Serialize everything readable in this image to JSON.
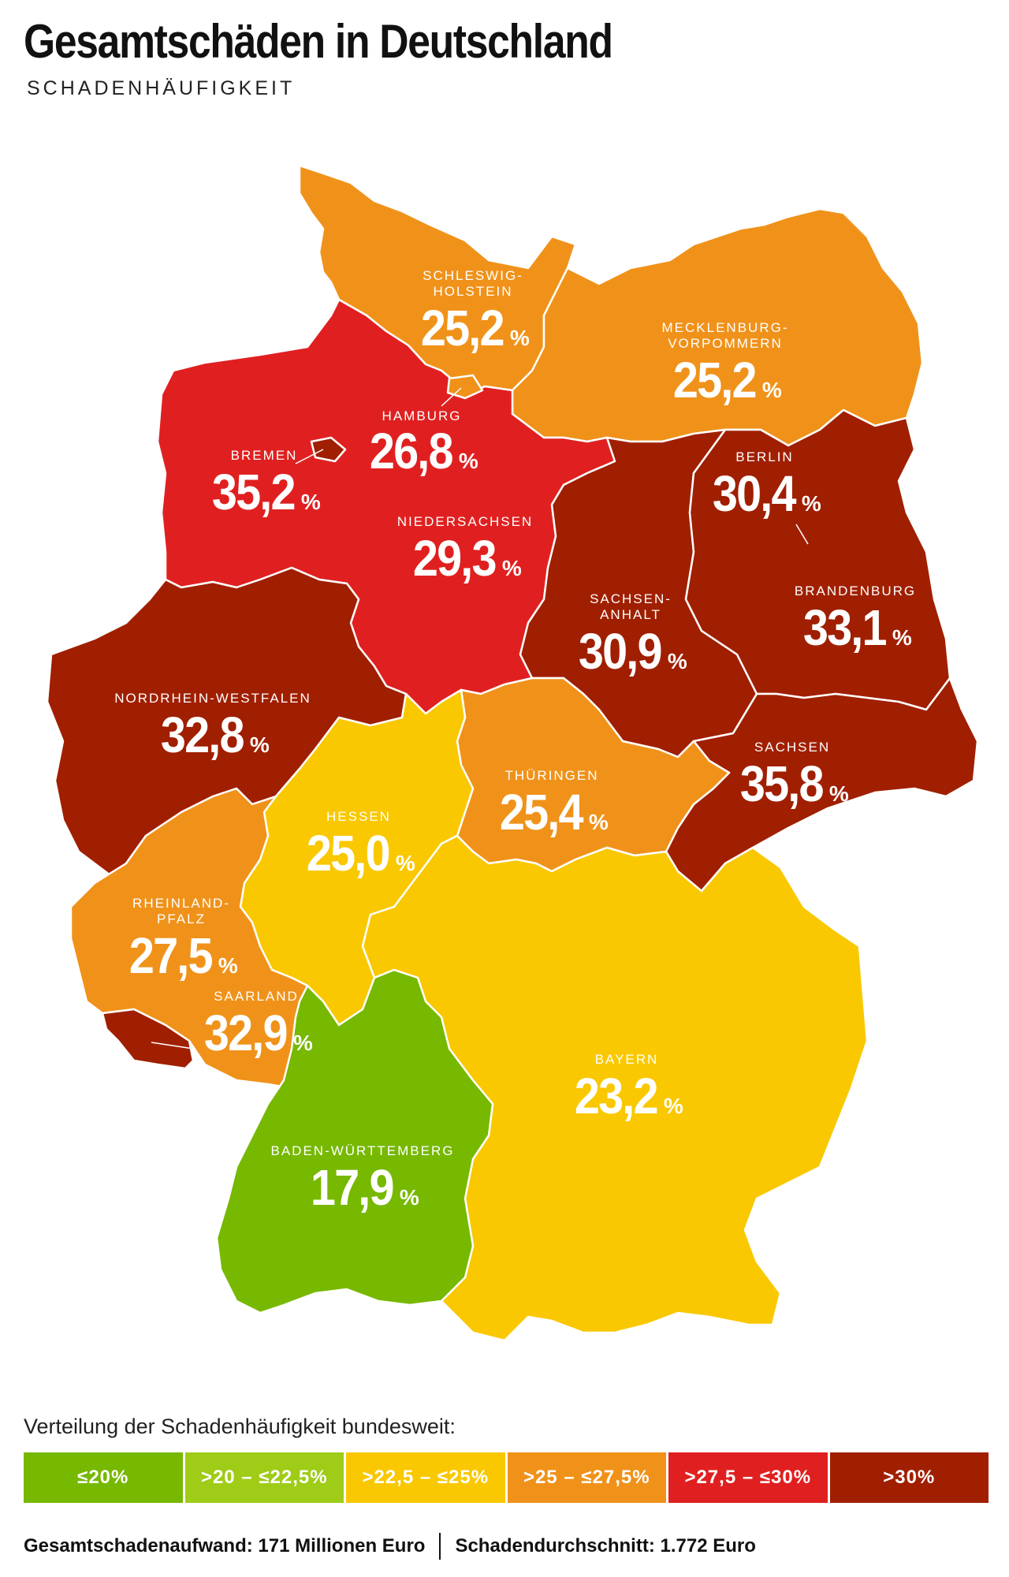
{
  "title": "Gesamtschäden in Deutschland",
  "subtitle": "SCHADENHÄUFIGKEIT",
  "colors": {
    "le20": "#77b800",
    "g20_225": "#9fcc17",
    "g225_25": "#f9c800",
    "g25_275": "#f0921a",
    "g275_30": "#e02020",
    "g30": "#a01f00"
  },
  "states": [
    {
      "name": "SCHLESWIG-\nHOLSTEIN",
      "value": "25,2",
      "unit": "%"
    },
    {
      "name": "MECKLENBURG-\nVORPOMMERN",
      "value": "25,2",
      "unit": "%"
    },
    {
      "name": "HAMBURG",
      "value": "26,8",
      "unit": "%"
    },
    {
      "name": "BREMEN",
      "value": "35,2",
      "unit": "%"
    },
    {
      "name": "BERLIN",
      "value": "30,4",
      "unit": "%"
    },
    {
      "name": "NIEDERSACHSEN",
      "value": "29,3",
      "unit": "%"
    },
    {
      "name": "SACHSEN-\nANHALT",
      "value": "30,9",
      "unit": "%"
    },
    {
      "name": "BRANDENBURG",
      "value": "33,1",
      "unit": "%"
    },
    {
      "name": "NORDRHEIN-WESTFALEN",
      "value": "32,8",
      "unit": "%"
    },
    {
      "name": "SACHSEN",
      "value": "35,8",
      "unit": "%"
    },
    {
      "name": "THÜRINGEN",
      "value": "25,4",
      "unit": "%"
    },
    {
      "name": "HESSEN",
      "value": "25,0",
      "unit": "%"
    },
    {
      "name": "RHEINLAND-\nPFALZ",
      "value": "27,5",
      "unit": "%"
    },
    {
      "name": "SAARLAND",
      "value": "32,9",
      "unit": "%"
    },
    {
      "name": "BAYERN",
      "value": "23,2",
      "unit": "%"
    },
    {
      "name": "BADEN-WÜRTTEMBERG",
      "value": "17,9",
      "unit": "%"
    }
  ],
  "legend": {
    "title": "Verteilung der Schadenhäufigkeit bundesweit:",
    "items": [
      {
        "label": "≤20%",
        "color": "#77b800"
      },
      {
        "label": ">20 – ≤22,5%",
        "color": "#9fcc17"
      },
      {
        "label": ">22,5 – ≤25%",
        "color": "#f9c800"
      },
      {
        "label": ">25 – ≤27,5%",
        "color": "#f0921a"
      },
      {
        "label": ">27,5 – ≤30%",
        "color": "#e02020"
      },
      {
        "label": ">30%",
        "color": "#a01f00"
      }
    ]
  },
  "footer": {
    "left": "Gesamtschadenaufwand: 171 Millionen Euro",
    "right": "Schadendurchschnitt: 1.772 Euro"
  }
}
